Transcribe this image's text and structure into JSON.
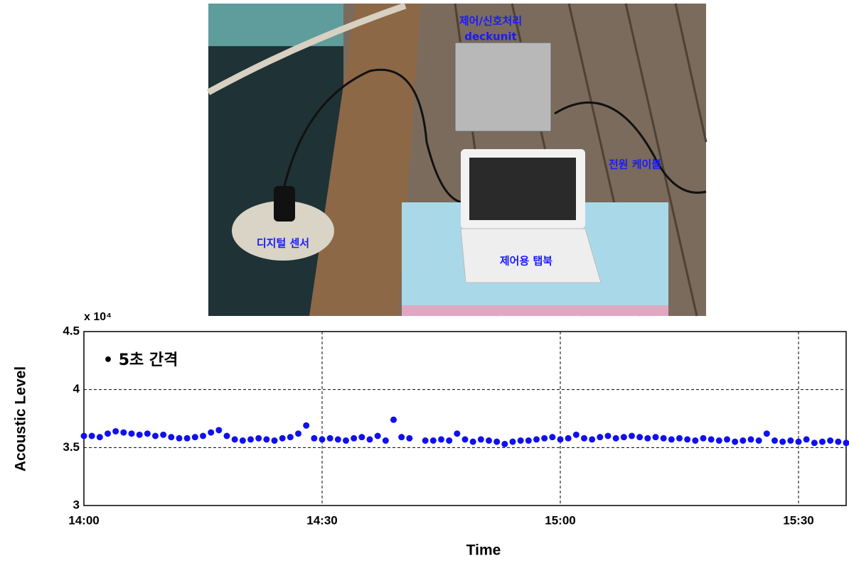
{
  "photo": {
    "labels": [
      "제어/신호처리",
      "deckunit",
      "전원 케이블",
      "디지털 센서",
      "제어용 탭북"
    ]
  },
  "chart_data": {
    "type": "scatter",
    "annotation": "• 5초 간격",
    "y_scale_label": "x 10⁴",
    "x_label": "Time",
    "y_label": "Acoustic Level",
    "color": "#1010ee",
    "grid": true,
    "xlim": [
      0,
      96
    ],
    "ylim": [
      3,
      4.5
    ],
    "xticks": [
      {
        "value": 0,
        "label": "14:00"
      },
      {
        "value": 30,
        "label": "14:30"
      },
      {
        "value": 60,
        "label": "15:00"
      },
      {
        "value": 90,
        "label": "15:30"
      }
    ],
    "yticks": [
      3,
      3.5,
      4,
      4.5
    ],
    "x": [
      0,
      1,
      2,
      3,
      4,
      5,
      6,
      7,
      8,
      9,
      10,
      11,
      12,
      13,
      14,
      15,
      16,
      17,
      18,
      19,
      20,
      21,
      22,
      23,
      24,
      25,
      26,
      27,
      28,
      29,
      30,
      31,
      32,
      33,
      34,
      35,
      36,
      37,
      38,
      39,
      40,
      41,
      43,
      44,
      45,
      46,
      47,
      48,
      49,
      50,
      51,
      52,
      53,
      54,
      55,
      56,
      57,
      58,
      59,
      60,
      61,
      62,
      63,
      64,
      65,
      66,
      67,
      68,
      69,
      70,
      71,
      72,
      73,
      74,
      75,
      76,
      77,
      78,
      79,
      80,
      81,
      82,
      83,
      84,
      85,
      86,
      87,
      88,
      89,
      90,
      91,
      92,
      93,
      94,
      95,
      96
    ],
    "values": [
      3.6,
      3.6,
      3.59,
      3.62,
      3.64,
      3.63,
      3.62,
      3.61,
      3.62,
      3.6,
      3.61,
      3.59,
      3.58,
      3.58,
      3.59,
      3.6,
      3.63,
      3.65,
      3.6,
      3.57,
      3.56,
      3.57,
      3.58,
      3.57,
      3.56,
      3.58,
      3.59,
      3.62,
      3.69,
      3.58,
      3.57,
      3.58,
      3.57,
      3.56,
      3.58,
      3.59,
      3.57,
      3.6,
      3.56,
      3.74,
      3.59,
      3.58,
      3.56,
      3.56,
      3.57,
      3.56,
      3.62,
      3.57,
      3.55,
      3.57,
      3.56,
      3.55,
      3.53,
      3.55,
      3.56,
      3.56,
      3.57,
      3.58,
      3.59,
      3.57,
      3.58,
      3.61,
      3.58,
      3.57,
      3.59,
      3.6,
      3.58,
      3.59,
      3.6,
      3.59,
      3.58,
      3.59,
      3.58,
      3.57,
      3.58,
      3.57,
      3.56,
      3.58,
      3.57,
      3.56,
      3.57,
      3.55,
      3.56,
      3.57,
      3.56,
      3.62,
      3.56,
      3.55,
      3.56,
      3.55,
      3.57,
      3.54,
      3.55,
      3.56,
      3.55,
      3.54
    ]
  }
}
